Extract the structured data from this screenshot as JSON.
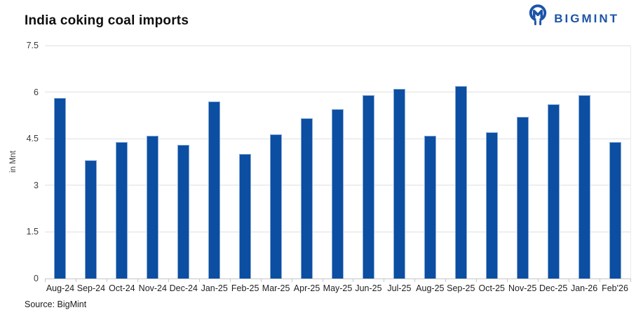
{
  "header": {
    "title": "India coking coal imports",
    "logo": {
      "brand": "BIGMINT",
      "icon": "bigmint-logo-icon",
      "color": "#1d54a7"
    }
  },
  "chart_data": {
    "type": "bar",
    "title": "India coking coal imports",
    "xlabel": "",
    "ylabel": "in Mnt",
    "ylim": [
      0,
      7.5
    ],
    "yticks": [
      0,
      1.5,
      3,
      4.5,
      6,
      7.5
    ],
    "ytick_labels": [
      "0",
      "1.5",
      "3",
      "4.5",
      "6",
      "7.5"
    ],
    "grid": true,
    "legend": "none",
    "bar_color": "#0b4ea2",
    "categories": [
      "Aug-24",
      "Sep-24",
      "Oct-24",
      "Nov-24",
      "Dec-24",
      "Jan-25",
      "Feb-25",
      "Mar-25",
      "Apr-25",
      "May-25",
      "Jun-25",
      "Jul-25",
      "Aug-25",
      "Sep-25",
      "Oct-25",
      "Nov-25",
      "Dec-25",
      "Jan-26",
      "Feb'26"
    ],
    "values": [
      5.8,
      3.8,
      4.4,
      4.6,
      4.3,
      5.7,
      4.0,
      4.65,
      5.15,
      5.45,
      5.9,
      6.1,
      4.6,
      6.2,
      4.7,
      5.2,
      5.6,
      5.9,
      4.4
    ]
  },
  "footer": {
    "source": "Source: BigMint"
  }
}
